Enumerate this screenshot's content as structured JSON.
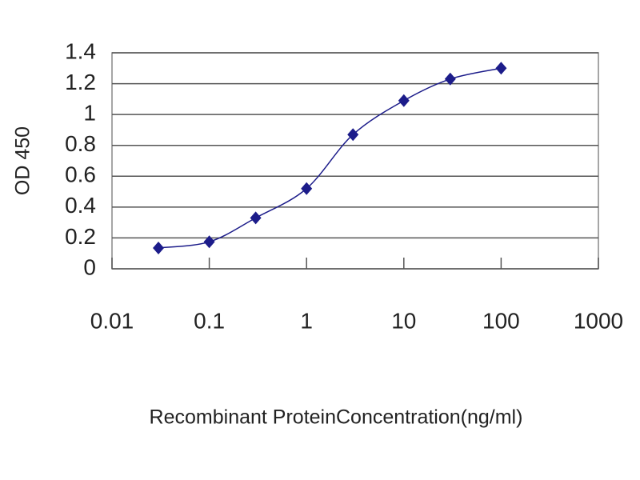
{
  "chart_data": {
    "type": "line",
    "xlabel": "Recombinant ProteinConcentration(ng/ml)",
    "ylabel": "OD 450",
    "x": [
      0.03,
      0.1,
      0.3,
      1,
      3,
      10,
      30,
      100
    ],
    "series": [
      {
        "color": "#1c1c8a",
        "values": [
          0.135,
          0.175,
          0.33,
          0.52,
          0.87,
          1.09,
          1.23,
          1.3
        ]
      }
    ],
    "xscale": "log",
    "xlim": [
      0.01,
      1000
    ],
    "xticks": [
      0.01,
      0.1,
      1,
      10,
      100,
      1000
    ],
    "ylim": [
      0,
      1.4
    ],
    "yticks": [
      0,
      0.2,
      0.4,
      0.6,
      0.8,
      1,
      1.2,
      1.4
    ],
    "grid": true
  }
}
